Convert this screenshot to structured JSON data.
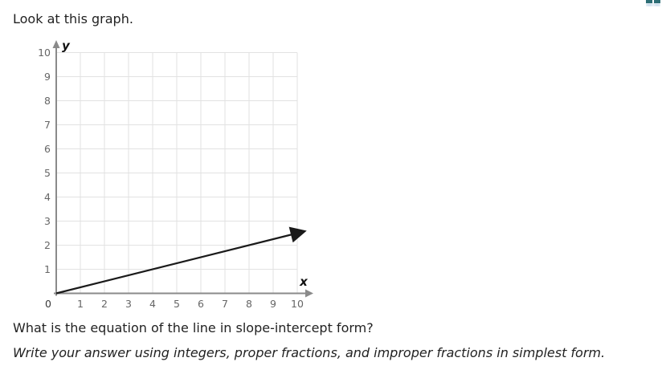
{
  "page": {
    "prompt": "Look at this graph.",
    "question": "What is the equation of the line in slope-intercept form?",
    "instruction": "Write your answer using integers, proper fractions, and improper fractions in simplest form."
  },
  "chart_data": {
    "type": "line",
    "title": "",
    "xlabel": "x",
    "ylabel": "y",
    "xlim": [
      0,
      10
    ],
    "ylim": [
      0,
      10
    ],
    "x_ticks": [
      0,
      1,
      2,
      3,
      4,
      5,
      6,
      7,
      8,
      9,
      10
    ],
    "y_ticks": [
      1,
      2,
      3,
      4,
      5,
      6,
      7,
      8,
      9,
      10
    ],
    "grid": true,
    "legend": false,
    "series": [
      {
        "name": "plotted-line",
        "points": [
          [
            0,
            0
          ],
          [
            10,
            2.5
          ]
        ],
        "slope": 0.25,
        "y_intercept": 0,
        "arrow_end": true,
        "color": "#1a1a1a"
      }
    ],
    "colors": {
      "grid": "#e2e2e2",
      "axis": "#8a8a8a",
      "tick_label": "#666666",
      "axis_letter": "#111111",
      "text": "#222222",
      "background": "#ffffff"
    }
  }
}
